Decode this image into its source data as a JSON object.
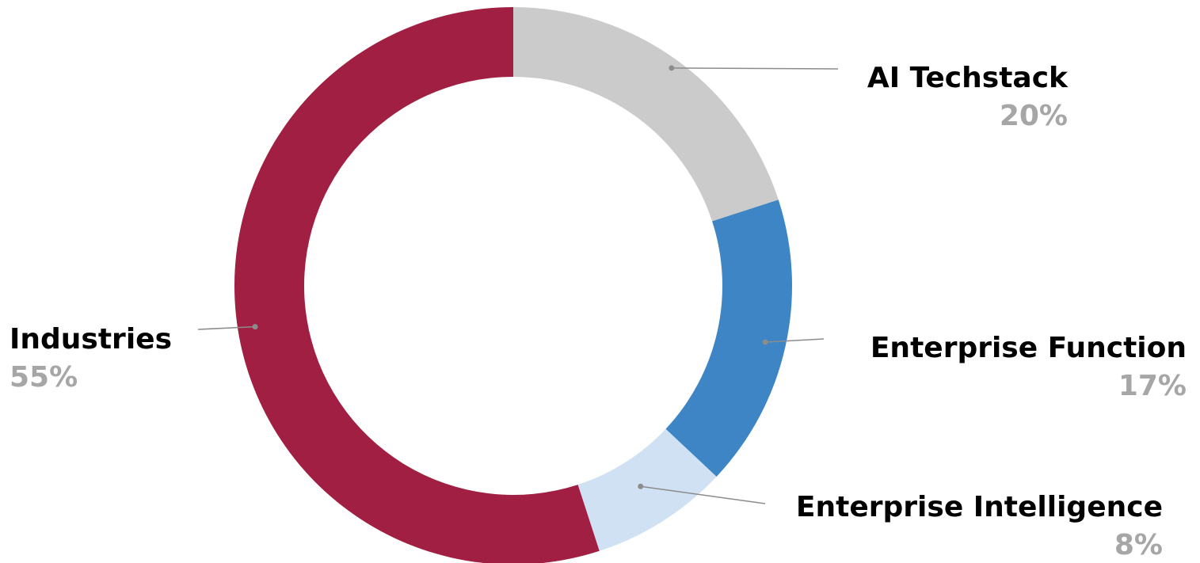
{
  "chart_data": {
    "type": "pie",
    "variant": "donut",
    "title": "",
    "slices": [
      {
        "label": "AI Techstack",
        "value": 20,
        "value_label": "20%",
        "color": "#cbcbcb"
      },
      {
        "label": "Enterprise Function",
        "value": 17,
        "value_label": "17%",
        "color": "#3e85c6"
      },
      {
        "label": "Enterprise Intelligence",
        "value": 8,
        "value_label": "8%",
        "color": "#cfe1f2"
      },
      {
        "label": "Industries",
        "value": 55,
        "value_label": "55%",
        "color": "#a01f42"
      }
    ],
    "start_angle": "12 o'clock",
    "direction": "clockwise",
    "legend": "none",
    "labels": "outside with leader lines"
  }
}
